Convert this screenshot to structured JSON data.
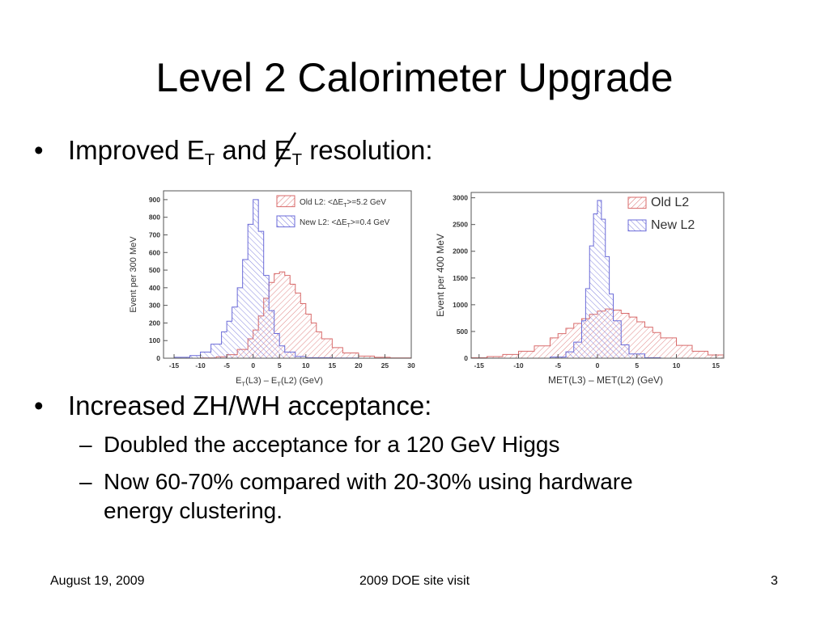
{
  "slide": {
    "title": "Level 2 Calorimeter Upgrade",
    "bullet1": {
      "pre": "Improved E",
      "sub1": "T",
      "mid": " and E",
      "sub2": "T",
      "post": "  resolution:"
    },
    "bullet2": "Increased ZH/WH acceptance:",
    "subbullets": [
      {
        "line1": "Doubled the acceptance for a 120 GeV Higgs"
      },
      {
        "line1": "Now 60-70% compared with 20-30% using hardware",
        "line2": "energy clustering."
      }
    ],
    "footer": {
      "date": "August 19, 2009",
      "center": "2009 DOE site visit",
      "page": "3"
    },
    "bullet_char": "•",
    "dash_char": "–"
  },
  "chart_data": [
    {
      "type": "area",
      "ylabel": "Event per 300 MeV",
      "xlabel": {
        "pre": "E",
        "sub1": "T",
        "mid": "(L3) – E",
        "sub2": "T",
        "post": "(L2)      (GeV)"
      },
      "xlim": [
        -17,
        30
      ],
      "ylim": [
        0,
        950
      ],
      "xticks": [
        -15,
        -10,
        -5,
        0,
        5,
        10,
        15,
        20,
        25,
        30
      ],
      "yticks": [
        0,
        100,
        200,
        300,
        400,
        500,
        600,
        700,
        800,
        900
      ],
      "legend_position": "top-right",
      "series": [
        {
          "name": "Old L2: <ΔE_T>=5.2 GeV",
          "legend": {
            "pre": "Old L2: <ΔE",
            "sub": "T",
            "post": ">=5.2 GeV"
          },
          "color": "#d86a6a",
          "mean": 5.2,
          "x": [
            -17,
            -10,
            -7,
            -5,
            -3,
            -1,
            0,
            1,
            2,
            3,
            4,
            5,
            6,
            7,
            8,
            9,
            10,
            11,
            12,
            13,
            15,
            17,
            20,
            23,
            26,
            30
          ],
          "y": [
            0,
            2,
            8,
            20,
            50,
            110,
            160,
            240,
            340,
            430,
            480,
            490,
            470,
            420,
            370,
            310,
            250,
            200,
            150,
            110,
            60,
            30,
            12,
            5,
            2,
            0
          ]
        },
        {
          "name": "New L2: <ΔE_T>=0.4 GeV",
          "legend": {
            "pre": "New L2: <ΔE",
            "sub": "T",
            "post": ">=0.4 GeV"
          },
          "color": "#6a6ad8",
          "mean": 0.4,
          "x": [
            -17,
            -15,
            -12,
            -10,
            -8,
            -6,
            -5,
            -4,
            -3,
            -2,
            -1,
            0,
            1,
            2,
            3,
            4,
            5,
            6,
            8,
            10,
            15,
            20,
            30
          ],
          "y": [
            0,
            5,
            15,
            35,
            80,
            150,
            210,
            290,
            400,
            560,
            760,
            900,
            720,
            470,
            270,
            140,
            70,
            35,
            10,
            3,
            1,
            0,
            0
          ]
        }
      ]
    },
    {
      "type": "area",
      "ylabel": "Event per 400 MeV",
      "xlabel": "MET(L3) – MET(L2)  (GeV)",
      "xlim": [
        -16,
        16
      ],
      "ylim": [
        0,
        3100
      ],
      "xticks": [
        -15,
        -10,
        -5,
        0,
        5,
        10,
        15
      ],
      "yticks": [
        0,
        500,
        1000,
        1500,
        2000,
        2500,
        3000
      ],
      "legend_position": "top-right",
      "series": [
        {
          "name": "Old L2",
          "color": "#d86a6a",
          "x": [
            -16,
            -14,
            -12,
            -10,
            -8,
            -6,
            -5,
            -4,
            -3,
            -2,
            -1,
            0,
            1,
            2,
            3,
            4,
            5,
            6,
            7,
            8,
            10,
            12,
            14,
            16
          ],
          "y": [
            10,
            30,
            70,
            130,
            230,
            380,
            460,
            560,
            650,
            740,
            820,
            880,
            920,
            900,
            840,
            770,
            680,
            580,
            480,
            380,
            240,
            130,
            60,
            20
          ]
        },
        {
          "name": "New L2",
          "color": "#6a6ad8",
          "x": [
            -16,
            -8,
            -6,
            -4,
            -3,
            -2,
            -1.5,
            -1,
            -0.5,
            0,
            0.5,
            1,
            1.5,
            2,
            3,
            4,
            6,
            8,
            16
          ],
          "y": [
            0,
            0,
            20,
            120,
            300,
            700,
            1300,
            2100,
            2700,
            2950,
            2600,
            1900,
            1200,
            700,
            250,
            80,
            10,
            0,
            0
          ]
        }
      ]
    }
  ]
}
